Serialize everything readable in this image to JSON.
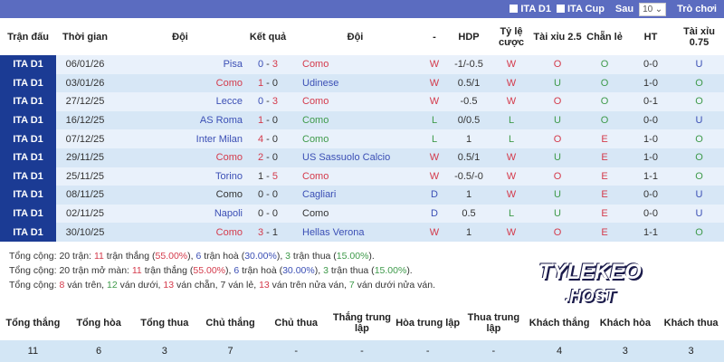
{
  "topbar": {
    "filters": [
      "ITA D1",
      "ITA Cup"
    ],
    "sau_label": "Sau",
    "count": "10",
    "games_label": "Trò chơi"
  },
  "headers": [
    "Trận đấu",
    "Thời gian",
    "Đội",
    "Kết quả",
    "Đội",
    "-",
    "HDP",
    "Tỷ lệ cược",
    "Tài xỉu 2.5",
    "Chẵn lẻ",
    "HT",
    "Tài xỉu 0.75"
  ],
  "rows": [
    {
      "league": "ITA D1",
      "date": "06/01/26",
      "home": "Pisa",
      "hc": "blue",
      "hs": "0",
      "as": "3",
      "hsc": "blue",
      "asc": "red",
      "away": "Como",
      "ac": "red",
      "res": "W",
      "hdp": "-1/-0.5",
      "odds": "W",
      "ou": "O",
      "oe": "O",
      "ht": "0-0",
      "ou075": "U"
    },
    {
      "league": "ITA D1",
      "date": "03/01/26",
      "home": "Como",
      "hc": "red",
      "hs": "1",
      "as": "0",
      "hsc": "red",
      "asc": "dark",
      "away": "Udinese",
      "ac": "blue",
      "res": "W",
      "hdp": "0.5/1",
      "odds": "W",
      "ou": "U",
      "oe": "O",
      "ht": "1-0",
      "ou075": "O"
    },
    {
      "league": "ITA D1",
      "date": "27/12/25",
      "home": "Lecce",
      "hc": "blue",
      "hs": "0",
      "as": "3",
      "hsc": "blue",
      "asc": "red",
      "away": "Como",
      "ac": "red",
      "res": "W",
      "hdp": "-0.5",
      "odds": "W",
      "ou": "O",
      "oe": "O",
      "ht": "0-1",
      "ou075": "O"
    },
    {
      "league": "ITA D1",
      "date": "16/12/25",
      "home": "AS Roma",
      "hc": "blue",
      "hs": "1",
      "as": "0",
      "hsc": "red",
      "asc": "dark",
      "away": "Como",
      "ac": "green",
      "res": "L",
      "hdp": "0/0.5",
      "odds": "L",
      "ou": "U",
      "oe": "O",
      "ht": "0-0",
      "ou075": "U"
    },
    {
      "league": "ITA D1",
      "date": "07/12/25",
      "home": "Inter Milan",
      "hc": "blue",
      "hs": "4",
      "as": "0",
      "hsc": "red",
      "asc": "dark",
      "away": "Como",
      "ac": "green",
      "res": "L",
      "hdp": "1",
      "odds": "L",
      "ou": "O",
      "oe": "E",
      "ht": "1-0",
      "ou075": "O"
    },
    {
      "league": "ITA D1",
      "date": "29/11/25",
      "home": "Como",
      "hc": "red",
      "hs": "2",
      "as": "0",
      "hsc": "red",
      "asc": "dark",
      "away": "US Sassuolo Calcio",
      "ac": "blue",
      "res": "W",
      "hdp": "0.5/1",
      "odds": "W",
      "ou": "U",
      "oe": "E",
      "ht": "1-0",
      "ou075": "O"
    },
    {
      "league": "ITA D1",
      "date": "25/11/25",
      "home": "Torino",
      "hc": "blue",
      "hs": "1",
      "as": "5",
      "hsc": "dark",
      "asc": "red",
      "away": "Como",
      "ac": "red",
      "res": "W",
      "hdp": "-0.5/-0",
      "odds": "W",
      "ou": "O",
      "oe": "E",
      "ht": "1-1",
      "ou075": "O"
    },
    {
      "league": "ITA D1",
      "date": "08/11/25",
      "home": "Como",
      "hc": "dark",
      "hs": "0",
      "as": "0",
      "hsc": "dark",
      "asc": "dark",
      "away": "Cagliari",
      "ac": "blue",
      "res": "D",
      "hdp": "1",
      "odds": "W",
      "ou": "U",
      "oe": "E",
      "ht": "0-0",
      "ou075": "U"
    },
    {
      "league": "ITA D1",
      "date": "02/11/25",
      "home": "Napoli",
      "hc": "blue",
      "hs": "0",
      "as": "0",
      "hsc": "dark",
      "asc": "dark",
      "away": "Como",
      "ac": "dark",
      "res": "D",
      "hdp": "0.5",
      "odds": "L",
      "ou": "U",
      "oe": "E",
      "ht": "0-0",
      "ou075": "U"
    },
    {
      "league": "ITA D1",
      "date": "30/10/25",
      "home": "Como",
      "hc": "red",
      "hs": "3",
      "as": "1",
      "hsc": "red",
      "asc": "dark",
      "away": "Hellas Verona",
      "ac": "blue",
      "res": "W",
      "hdp": "1",
      "odds": "W",
      "ou": "O",
      "oe": "E",
      "ht": "1-1",
      "ou075": "O"
    }
  ],
  "stats": [
    [
      [
        "Tổng cộng: 20 trận: ",
        "dark"
      ],
      [
        "11",
        "red"
      ],
      [
        " trận thắng (",
        "dark"
      ],
      [
        "55.00%",
        "red"
      ],
      [
        "), ",
        "dark"
      ],
      [
        "6",
        "blue"
      ],
      [
        " trận hoà (",
        "dark"
      ],
      [
        "30.00%",
        "blue"
      ],
      [
        "), ",
        "dark"
      ],
      [
        "3",
        "green"
      ],
      [
        " trận thua (",
        "dark"
      ],
      [
        "15.00%",
        "green"
      ],
      [
        ").",
        "dark"
      ]
    ],
    [
      [
        "Tổng cộng: 20 trận mở màn: ",
        "dark"
      ],
      [
        "11",
        "red"
      ],
      [
        " trận thắng (",
        "dark"
      ],
      [
        "55.00%",
        "red"
      ],
      [
        "), ",
        "dark"
      ],
      [
        "6",
        "blue"
      ],
      [
        " trận hoà (",
        "dark"
      ],
      [
        "30.00%",
        "blue"
      ],
      [
        "), ",
        "dark"
      ],
      [
        "3",
        "green"
      ],
      [
        " trận thua (",
        "dark"
      ],
      [
        "15.00%",
        "green"
      ],
      [
        ").",
        "dark"
      ]
    ],
    [
      [
        "Tổng cộng: ",
        "dark"
      ],
      [
        "8",
        "red"
      ],
      [
        " ván trên, ",
        "dark"
      ],
      [
        "12",
        "green"
      ],
      [
        " ván dưới, ",
        "dark"
      ],
      [
        "13",
        "red"
      ],
      [
        " ván chẵn, ",
        "dark"
      ],
      [
        "7",
        "dark"
      ],
      [
        " ván lẻ, ",
        "dark"
      ],
      [
        "13",
        "red"
      ],
      [
        " ván trên nửa ván, ",
        "dark"
      ],
      [
        "7",
        "green"
      ],
      [
        " ván dưới nửa ván.",
        "dark"
      ]
    ]
  ],
  "summary": {
    "headers": [
      "Tổng thắng",
      "Tổng hòa",
      "Tổng thua",
      "Chủ thắng",
      "Chủ thua",
      "Thắng trung lập",
      "Hòa trung lập",
      "Thua trung lập",
      "Khách thắng",
      "Khách hòa",
      "Khách thua"
    ],
    "values": [
      "11",
      "6",
      "3",
      "7",
      "-",
      "-",
      "-",
      "-",
      "4",
      "3",
      "3"
    ]
  },
  "logo": {
    "line1": "TYLEKEO",
    "line2": ".HOST"
  },
  "colors": {
    "header": "#5b6cc0",
    "league": "#1b3b94",
    "win": "#d43a4b",
    "loss": "#3e9a4a",
    "draw": "#3b4fb5"
  }
}
